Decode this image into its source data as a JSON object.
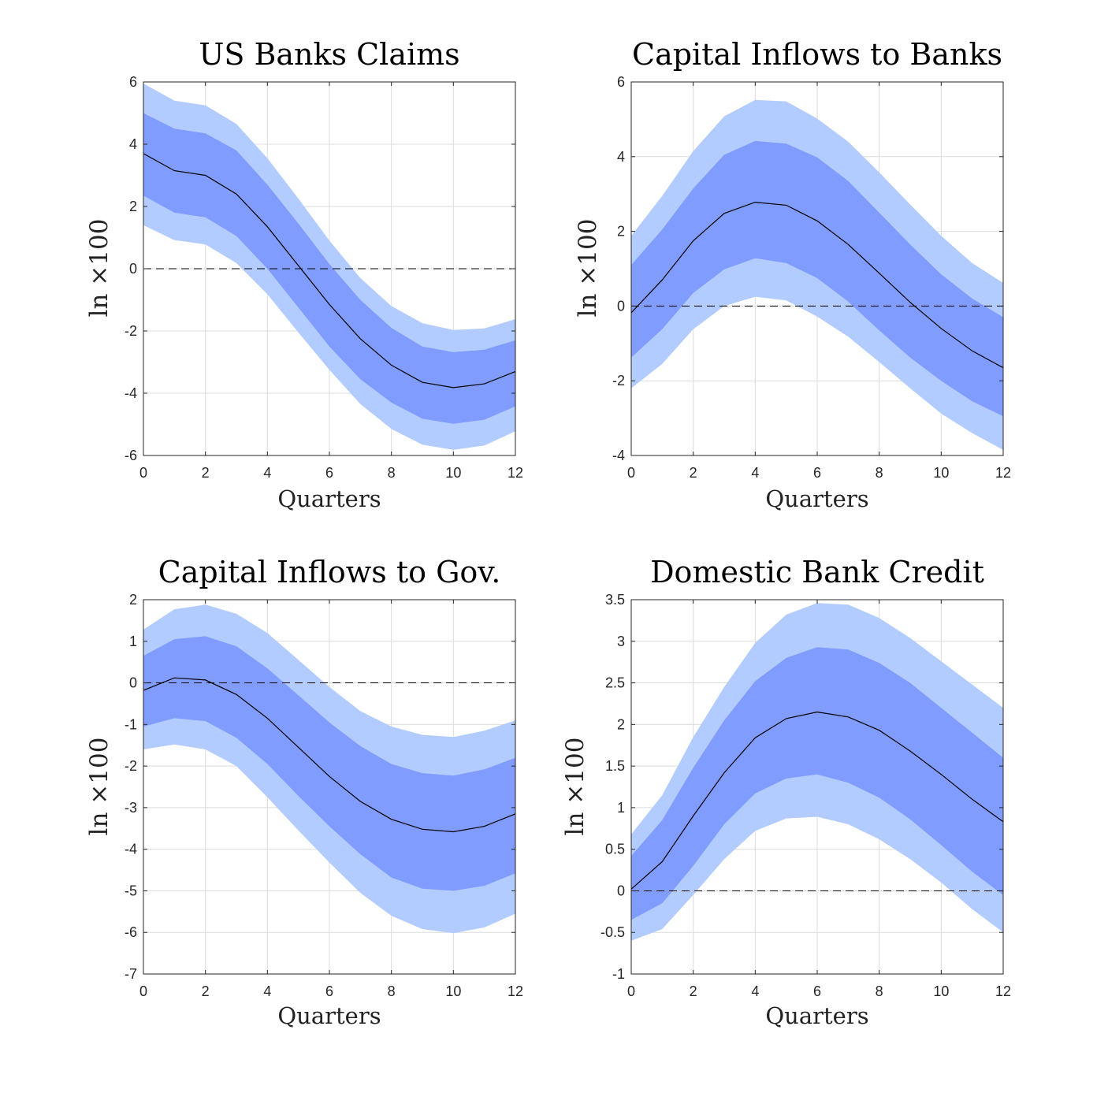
{
  "colors": {
    "outer_band": "#b3ccff",
    "inner_band": "#809cff",
    "median_line": "#000000",
    "zero_line": "#000000",
    "grid": "#dcdcdc",
    "axes": "#262626"
  },
  "chart_data": [
    {
      "type": "area",
      "title": "US Banks Claims",
      "xlabel": "Quarters",
      "ylabel": "ln ×100",
      "xlim": [
        0,
        12
      ],
      "ylim": [
        -6,
        6
      ],
      "xticks": [
        0,
        2,
        4,
        6,
        8,
        10,
        12
      ],
      "yticks": [
        -6,
        -4,
        -2,
        0,
        2,
        4,
        6
      ],
      "x": [
        0,
        1,
        2,
        3,
        4,
        5,
        6,
        7,
        8,
        9,
        10,
        11,
        12
      ],
      "median": [
        3.7,
        3.15,
        3.0,
        2.4,
        1.35,
        0.1,
        -1.15,
        -2.25,
        -3.1,
        -3.65,
        -3.82,
        -3.7,
        -3.3
      ],
      "inner_upper": [
        5.0,
        4.5,
        4.35,
        3.8,
        2.7,
        1.45,
        0.15,
        -1.0,
        -1.9,
        -2.5,
        -2.68,
        -2.6,
        -2.3
      ],
      "inner_lower": [
        2.35,
        1.8,
        1.65,
        1.05,
        0.0,
        -1.25,
        -2.5,
        -3.55,
        -4.3,
        -4.82,
        -4.98,
        -4.85,
        -4.42
      ],
      "outer_upper": [
        5.95,
        5.4,
        5.25,
        4.65,
        3.55,
        2.25,
        0.9,
        -0.3,
        -1.2,
        -1.75,
        -1.97,
        -1.92,
        -1.62
      ],
      "outer_lower": [
        1.4,
        0.92,
        0.78,
        0.18,
        -0.82,
        -2.05,
        -3.25,
        -4.35,
        -5.15,
        -5.65,
        -5.82,
        -5.68,
        -5.22
      ],
      "zero_line": 0
    },
    {
      "type": "area",
      "title": "Capital Inflows to Banks",
      "xlabel": "Quarters",
      "ylabel": "ln ×100",
      "xlim": [
        0,
        12
      ],
      "ylim": [
        -4,
        6
      ],
      "xticks": [
        0,
        2,
        4,
        6,
        8,
        10,
        12
      ],
      "yticks": [
        -4,
        -2,
        0,
        2,
        4,
        6
      ],
      "x": [
        0,
        1,
        2,
        3,
        4,
        5,
        6,
        7,
        8,
        9,
        10,
        11,
        12
      ],
      "median": [
        -0.18,
        0.7,
        1.75,
        2.48,
        2.78,
        2.7,
        2.28,
        1.65,
        0.88,
        0.1,
        -0.6,
        -1.2,
        -1.65
      ],
      "inner_upper": [
        1.1,
        2.05,
        3.15,
        4.05,
        4.42,
        4.35,
        3.98,
        3.35,
        2.5,
        1.65,
        0.85,
        0.2,
        -0.3
      ],
      "inner_lower": [
        -1.38,
        -0.62,
        0.35,
        0.98,
        1.28,
        1.15,
        0.75,
        0.12,
        -0.65,
        -1.38,
        -2.0,
        -2.55,
        -2.95
      ],
      "outer_upper": [
        1.88,
        2.95,
        4.15,
        5.08,
        5.52,
        5.48,
        5.02,
        4.4,
        3.58,
        2.72,
        1.88,
        1.15,
        0.62
      ],
      "outer_lower": [
        -2.2,
        -1.55,
        -0.62,
        0.0,
        0.25,
        0.15,
        -0.28,
        -0.82,
        -1.5,
        -2.2,
        -2.88,
        -3.4,
        -3.85
      ],
      "zero_line": 0
    },
    {
      "type": "area",
      "title": "Capital Inflows to Gov.",
      "xlabel": "Quarters",
      "ylabel": "ln ×100",
      "xlim": [
        0,
        12
      ],
      "ylim": [
        -7,
        2
      ],
      "xticks": [
        0,
        2,
        4,
        6,
        8,
        10,
        12
      ],
      "yticks": [
        -7,
        -6,
        -5,
        -4,
        -3,
        -2,
        -1,
        0,
        1,
        2
      ],
      "x": [
        0,
        1,
        2,
        3,
        4,
        5,
        6,
        7,
        8,
        9,
        10,
        11,
        12
      ],
      "median": [
        -0.18,
        0.12,
        0.07,
        -0.28,
        -0.85,
        -1.55,
        -2.25,
        -2.85,
        -3.28,
        -3.52,
        -3.58,
        -3.45,
        -3.15
      ],
      "inner_upper": [
        0.65,
        1.05,
        1.12,
        0.88,
        0.35,
        -0.3,
        -0.95,
        -1.52,
        -1.95,
        -2.17,
        -2.23,
        -2.08,
        -1.8
      ],
      "inner_lower": [
        -1.05,
        -0.85,
        -0.92,
        -1.32,
        -1.95,
        -2.72,
        -3.45,
        -4.12,
        -4.68,
        -4.95,
        -5.0,
        -4.88,
        -4.58
      ],
      "outer_upper": [
        1.28,
        1.77,
        1.88,
        1.66,
        1.2,
        0.55,
        -0.1,
        -0.68,
        -1.05,
        -1.25,
        -1.3,
        -1.15,
        -0.9
      ],
      "outer_lower": [
        -1.6,
        -1.48,
        -1.6,
        -2.0,
        -2.75,
        -3.55,
        -4.32,
        -5.05,
        -5.6,
        -5.92,
        -6.02,
        -5.88,
        -5.55
      ],
      "zero_line": 0
    },
    {
      "type": "area",
      "title": "Domestic Bank Credit",
      "xlabel": "Quarters",
      "ylabel": "ln ×100",
      "xlim": [
        0,
        12
      ],
      "ylim": [
        -1,
        3.5
      ],
      "xticks": [
        0,
        2,
        4,
        6,
        8,
        10,
        12
      ],
      "yticks": [
        -1,
        -0.5,
        0,
        0.5,
        1,
        1.5,
        2,
        2.5,
        3,
        3.5
      ],
      "x": [
        0,
        1,
        2,
        3,
        4,
        5,
        6,
        7,
        8,
        9,
        10,
        11,
        12
      ],
      "median": [
        0.02,
        0.35,
        0.9,
        1.42,
        1.84,
        2.07,
        2.15,
        2.09,
        1.93,
        1.68,
        1.4,
        1.1,
        0.83
      ],
      "inner_upper": [
        0.42,
        0.85,
        1.48,
        2.05,
        2.52,
        2.8,
        2.93,
        2.9,
        2.74,
        2.5,
        2.2,
        1.9,
        1.6
      ],
      "inner_lower": [
        -0.35,
        -0.15,
        0.3,
        0.8,
        1.17,
        1.35,
        1.4,
        1.3,
        1.12,
        0.86,
        0.55,
        0.23,
        -0.05
      ],
      "outer_upper": [
        0.68,
        1.15,
        1.85,
        2.45,
        2.98,
        3.32,
        3.46,
        3.44,
        3.28,
        3.04,
        2.76,
        2.48,
        2.2
      ],
      "outer_lower": [
        -0.6,
        -0.46,
        -0.05,
        0.38,
        0.72,
        0.87,
        0.89,
        0.8,
        0.62,
        0.38,
        0.1,
        -0.22,
        -0.5
      ],
      "zero_line": 0
    }
  ]
}
